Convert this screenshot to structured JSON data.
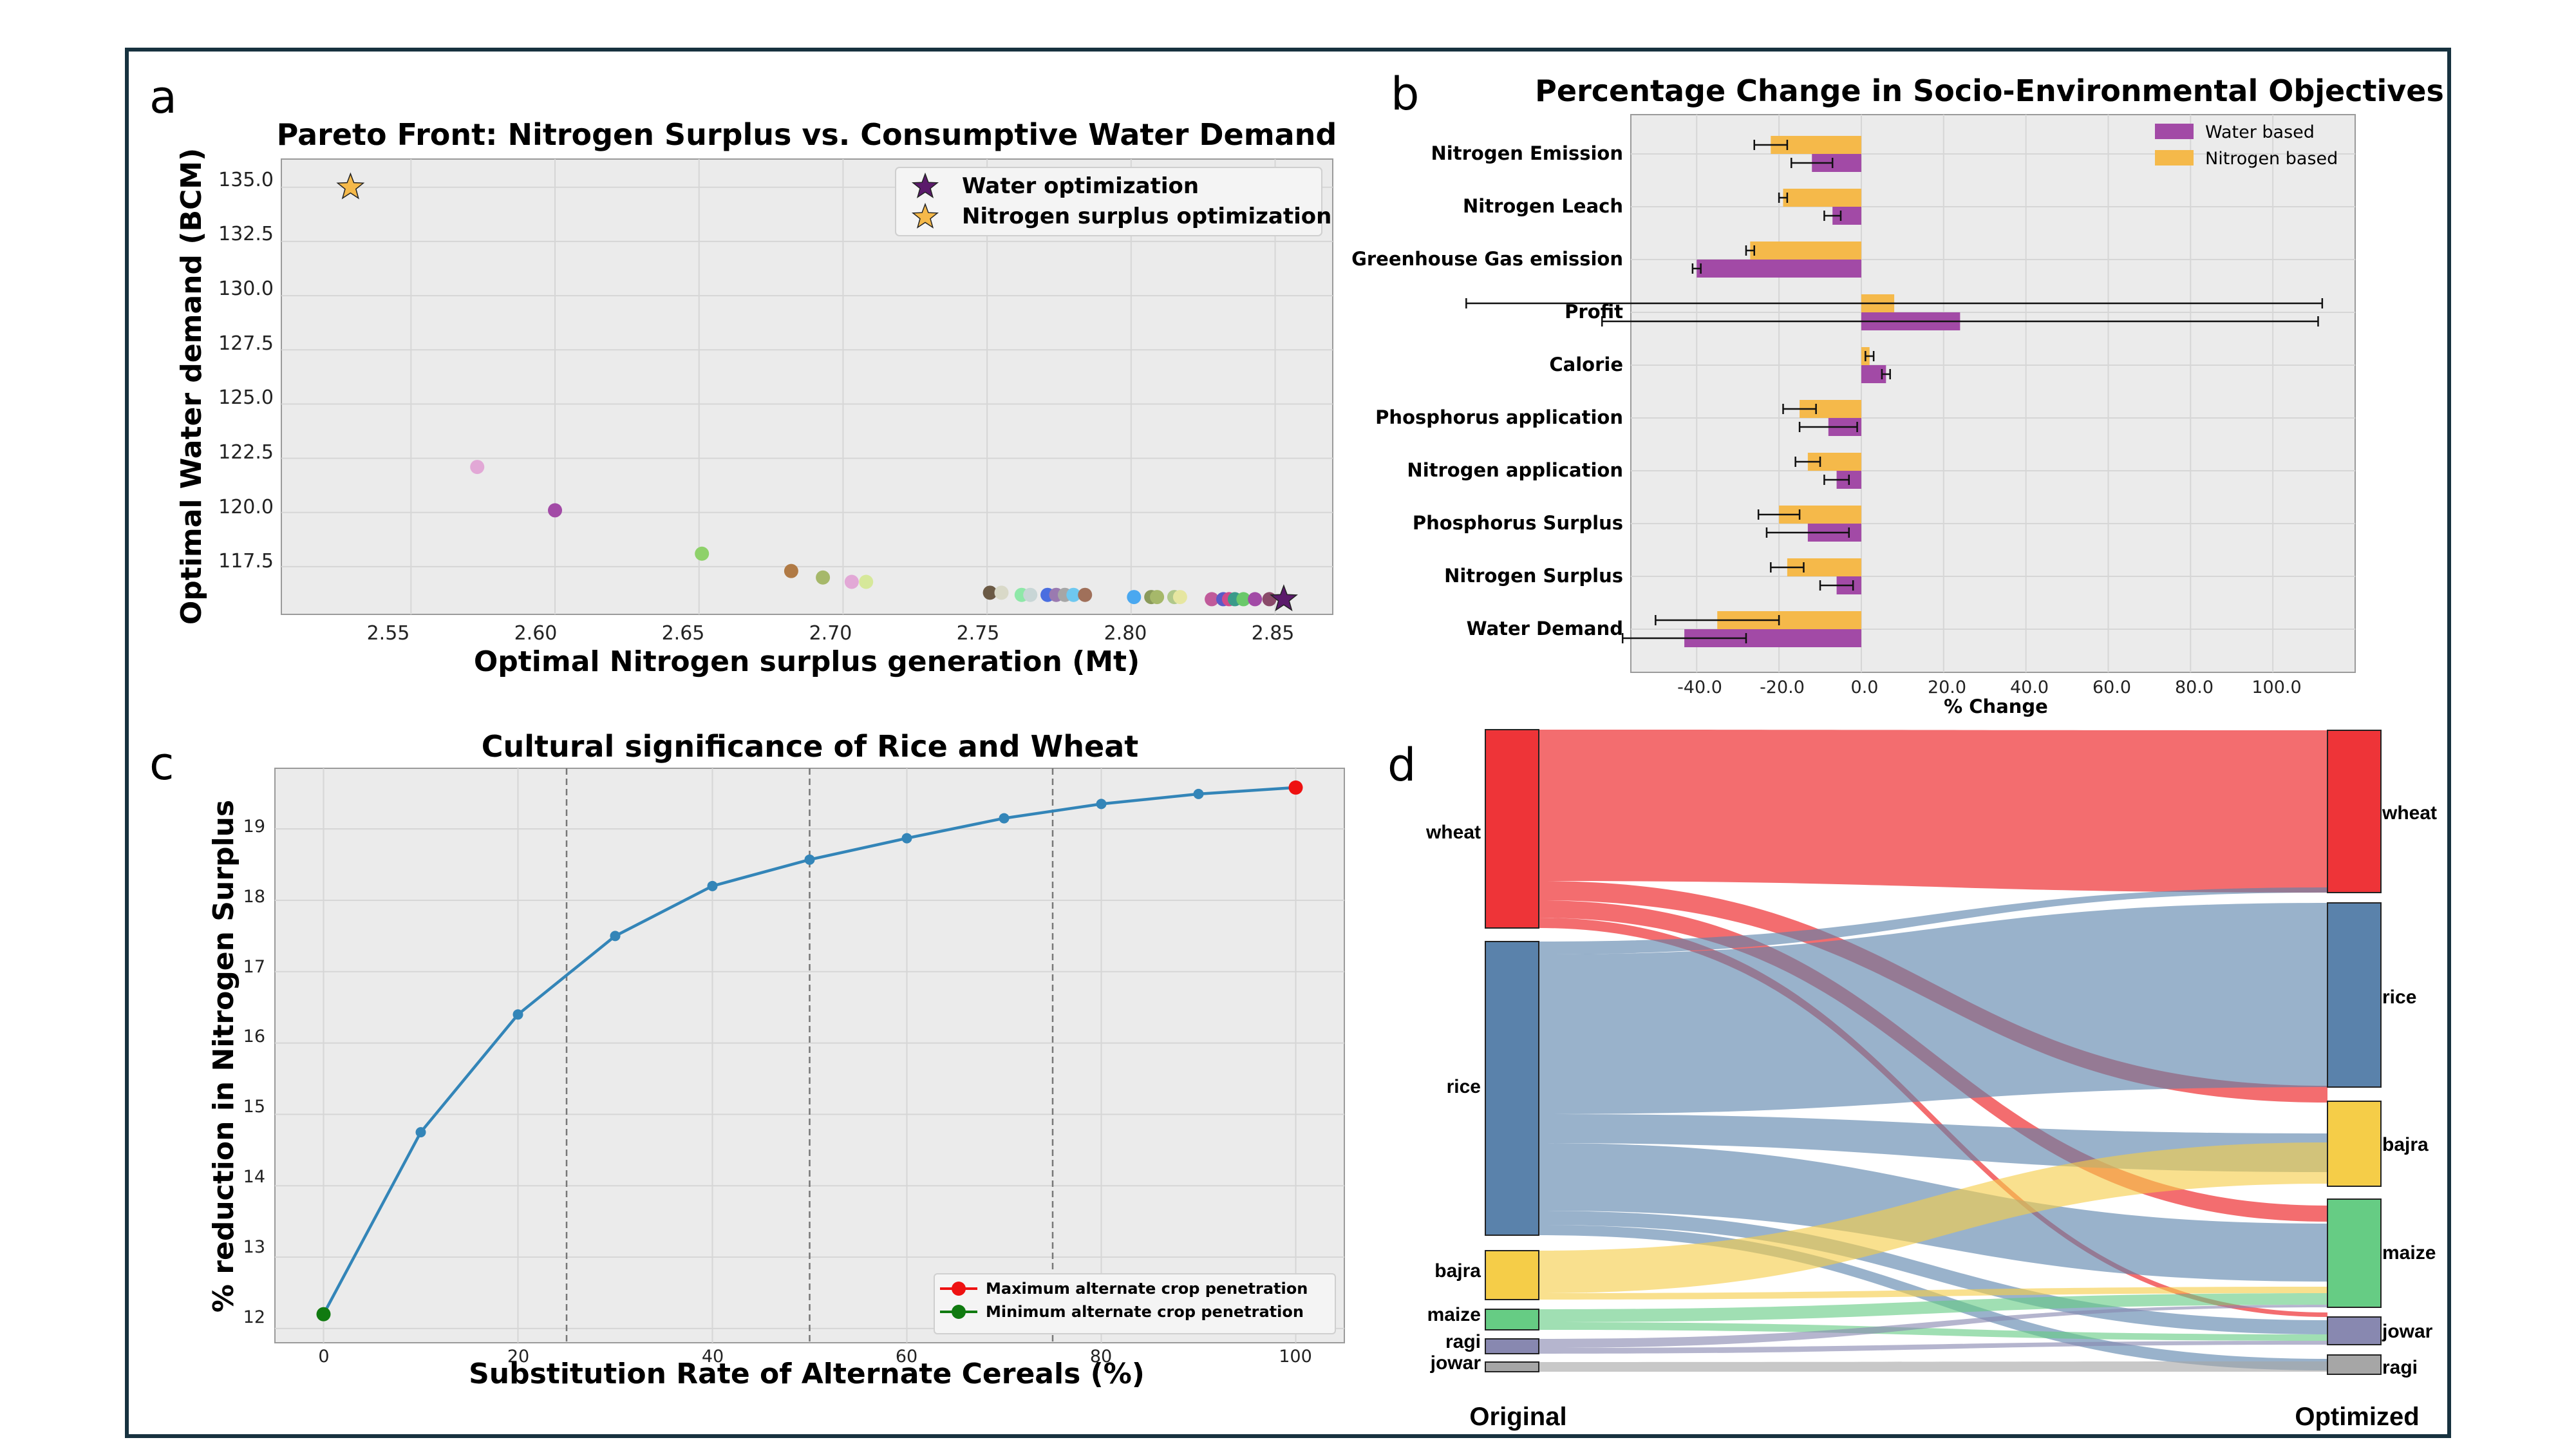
{
  "panels": {
    "a": "a",
    "b": "b",
    "c": "c",
    "d": "d"
  },
  "colors": {
    "frame": "#17323f",
    "axes_bg": "#ebebeb",
    "grid": "#d9d9d9",
    "water": "#a24aa6",
    "nitrogen": "#f5b94a",
    "line": "#3385b8",
    "max_point": "#ee1111",
    "min_point": "#107a10"
  },
  "chart_data": [
    {
      "id": "a",
      "type": "scatter",
      "title": "Pareto Front: Nitrogen Surplus vs. Consumptive Water Demand",
      "xlabel": "Optimal Nitrogen surplus generation (Mt)",
      "ylabel": "Optimal Water demand (BCM)",
      "xlim": [
        2.505,
        2.87
      ],
      "ylim": [
        115.3,
        136.3
      ],
      "xticks": [
        "2.55",
        "2.60",
        "2.65",
        "2.70",
        "2.75",
        "2.80",
        "2.85"
      ],
      "yticks": [
        "117.5",
        "120.0",
        "122.5",
        "125.0",
        "127.5",
        "130.0",
        "132.5",
        "135.0"
      ],
      "points": [
        {
          "x": 2.573,
          "y": 122.1,
          "color": "#e2a8d6"
        },
        {
          "x": 2.6,
          "y": 120.1,
          "color": "#a24aa6"
        },
        {
          "x": 2.651,
          "y": 118.1,
          "color": "#8ed16a"
        },
        {
          "x": 2.682,
          "y": 117.3,
          "color": "#b07a45"
        },
        {
          "x": 2.693,
          "y": 117.0,
          "color": "#a6b86a"
        },
        {
          "x": 2.703,
          "y": 116.8,
          "color": "#e2a8d6"
        },
        {
          "x": 2.708,
          "y": 116.8,
          "color": "#d6e89a"
        },
        {
          "x": 2.751,
          "y": 116.3,
          "color": "#6b5a45"
        },
        {
          "x": 2.755,
          "y": 116.3,
          "color": "#d9d9c8"
        },
        {
          "x": 2.762,
          "y": 116.2,
          "color": "#8ee8a8"
        },
        {
          "x": 2.765,
          "y": 116.2,
          "color": "#c8d6d6"
        },
        {
          "x": 2.771,
          "y": 116.2,
          "color": "#4a6ee0"
        },
        {
          "x": 2.774,
          "y": 116.2,
          "color": "#9a7ab0"
        },
        {
          "x": 2.777,
          "y": 116.2,
          "color": "#a6a6a6"
        },
        {
          "x": 2.78,
          "y": 116.2,
          "color": "#6ec8f0"
        },
        {
          "x": 2.784,
          "y": 116.2,
          "color": "#a0705a"
        },
        {
          "x": 2.801,
          "y": 116.1,
          "color": "#4aa8f0"
        },
        {
          "x": 2.807,
          "y": 116.1,
          "color": "#8a9a5a"
        },
        {
          "x": 2.809,
          "y": 116.1,
          "color": "#a6b86a"
        },
        {
          "x": 2.815,
          "y": 116.1,
          "color": "#b0c88a"
        },
        {
          "x": 2.817,
          "y": 116.1,
          "color": "#e6e6a0"
        },
        {
          "x": 2.828,
          "y": 116.0,
          "color": "#c05a9a"
        },
        {
          "x": 2.832,
          "y": 116.0,
          "color": "#5a5ac8"
        },
        {
          "x": 2.834,
          "y": 116.0,
          "color": "#d04a8a"
        },
        {
          "x": 2.836,
          "y": 116.0,
          "color": "#3a9a8a"
        },
        {
          "x": 2.839,
          "y": 116.0,
          "color": "#6ac86a"
        },
        {
          "x": 2.843,
          "y": 116.0,
          "color": "#a24aa6"
        },
        {
          "x": 2.848,
          "y": 116.0,
          "color": "#8a4a6a"
        }
      ],
      "stars": [
        {
          "name": "Water optimization",
          "x": 2.853,
          "y": 116.0,
          "color": "#5b1a6b"
        },
        {
          "name": "Nitrogen surplus optimization",
          "x": 2.529,
          "y": 135.0,
          "color": "#f5b94a"
        }
      ],
      "legend": [
        "Water optimization",
        "Nitrogen surplus optimization"
      ]
    },
    {
      "id": "b",
      "type": "bar",
      "orientation": "horizontal",
      "title": "Percentage Change in Socio-Environmental Objectives",
      "xlabel": "% Change",
      "xlim": [
        -56,
        120
      ],
      "xticks": [
        "-40.0",
        "-20.0",
        "0.0",
        "20.0",
        "40.0",
        "60.0",
        "80.0",
        "100.0"
      ],
      "categories": [
        "Nitrogen Emission",
        "Nitrogen Leach",
        "Greenhouse Gas emission",
        "Profit",
        "Calorie",
        "Phosphorus application",
        "Nitrogen application",
        "Phosphorus Surplus",
        "Nitrogen Surplus",
        "Water Demand"
      ],
      "series": [
        {
          "name": "Water based",
          "color": "#a24aa6",
          "values": [
            -12,
            -7,
            -40,
            24,
            6,
            -8,
            -6,
            -13,
            -6,
            -43
          ],
          "errors": [
            5,
            2,
            1,
            87,
            1,
            7,
            3,
            10,
            4,
            15
          ]
        },
        {
          "name": "Nitrogen based",
          "color": "#f5b94a",
          "values": [
            -22,
            -19,
            -27,
            8,
            2,
            -15,
            -13,
            -20,
            -18,
            -35
          ],
          "errors": [
            4,
            1,
            1,
            104,
            1,
            4,
            3,
            5,
            4,
            15
          ]
        }
      ],
      "legend": [
        "Water based",
        "Nitrogen based"
      ]
    },
    {
      "id": "c",
      "type": "line",
      "title": "Cultural significance of Rice and Wheat",
      "xlabel": "Substitution Rate of Alternate Cereals (%)",
      "ylabel": "% reduction in Nitrogen Surplus",
      "xlim": [
        -5,
        105
      ],
      "ylim": [
        11.8,
        19.85
      ],
      "xticks": [
        "0",
        "20",
        "40",
        "60",
        "80",
        "100"
      ],
      "yticks": [
        "12",
        "13",
        "14",
        "15",
        "16",
        "17",
        "18",
        "19"
      ],
      "x": [
        0,
        10,
        20,
        30,
        40,
        50,
        60,
        70,
        80,
        90,
        100
      ],
      "y": [
        12.2,
        14.75,
        16.4,
        17.5,
        18.2,
        18.57,
        18.87,
        19.15,
        19.35,
        19.49,
        19.58
      ],
      "vlines": [
        25,
        50,
        75
      ],
      "legend": [
        "Maximum alternate crop penetration",
        "Minimum alternate crop penetration"
      ]
    },
    {
      "id": "d",
      "type": "sankey",
      "left_label": "Original",
      "right_label": "Optimized",
      "left_nodes": [
        {
          "name": "wheat",
          "color": "#ee3438"
        },
        {
          "name": "rice",
          "color": "#5a82ab"
        },
        {
          "name": "bajra",
          "color": "#f5cd48"
        },
        {
          "name": "maize",
          "color": "#66cc84"
        },
        {
          "name": "ragi",
          "color": "#8888b0"
        },
        {
          "name": "jowar",
          "color": "#a6a6a6"
        }
      ],
      "right_nodes": [
        {
          "name": "wheat",
          "color": "#ee3438"
        },
        {
          "name": "rice",
          "color": "#5a82ab"
        },
        {
          "name": "bajra",
          "color": "#f5cd48"
        },
        {
          "name": "maize",
          "color": "#66cc84"
        },
        {
          "name": "jowar",
          "color": "#8888b0"
        },
        {
          "name": "ragi",
          "color": "#a6a6a6"
        }
      ]
    }
  ]
}
